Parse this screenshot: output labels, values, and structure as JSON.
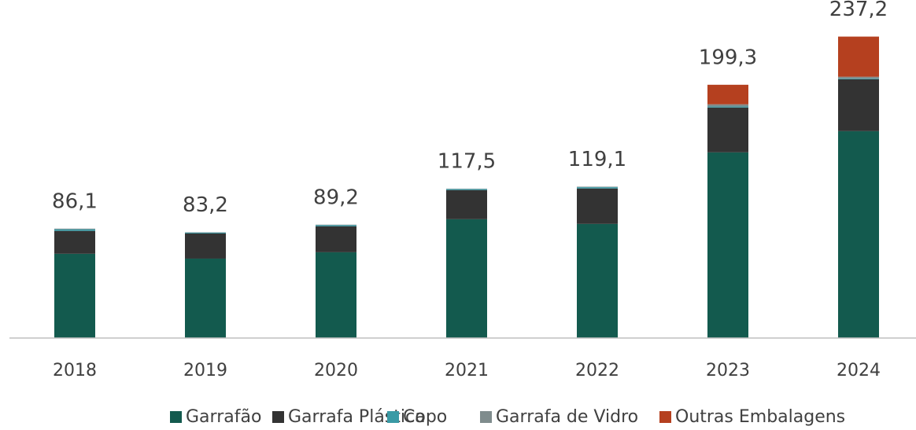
{
  "chart_data": {
    "type": "stacked_bar",
    "categories": [
      "2018",
      "2019",
      "2020",
      "2021",
      "2022",
      "2023",
      "2024"
    ],
    "series": [
      {
        "name": "Garrafão",
        "color": "#135a4e",
        "values": [
          66.3,
          62.5,
          67.5,
          93.5,
          89.8,
          146.1,
          162.8
        ]
      },
      {
        "name": "Garrafa Plástica",
        "color": "#333333",
        "values": [
          18.0,
          19.8,
          20.4,
          22.9,
          27.9,
          35.3,
          40.9
        ]
      },
      {
        "name": "Copo",
        "color": "#3a9aa5",
        "values": [
          1.3,
          0.6,
          0.9,
          0.8,
          1.0,
          0.8,
          0.6
        ]
      },
      {
        "name": "Garrafa de Vidro",
        "color": "#7f8c8d",
        "values": [
          0.5,
          0.3,
          0.4,
          0.3,
          0.4,
          1.7,
          1.3
        ]
      },
      {
        "name": "Outras Embalagens",
        "color": "#b5401f",
        "values": [
          0,
          0,
          0,
          0,
          0,
          15.4,
          31.6
        ]
      }
    ],
    "totals": [
      86.1,
      83.2,
      89.2,
      117.5,
      119.1,
      199.3,
      237.2
    ],
    "total_labels": [
      "86,1",
      "83,2",
      "89,2",
      "117,5",
      "119,1",
      "199,3",
      "237,2"
    ],
    "ylim": [
      0,
      266
    ],
    "legend": "bottom"
  }
}
